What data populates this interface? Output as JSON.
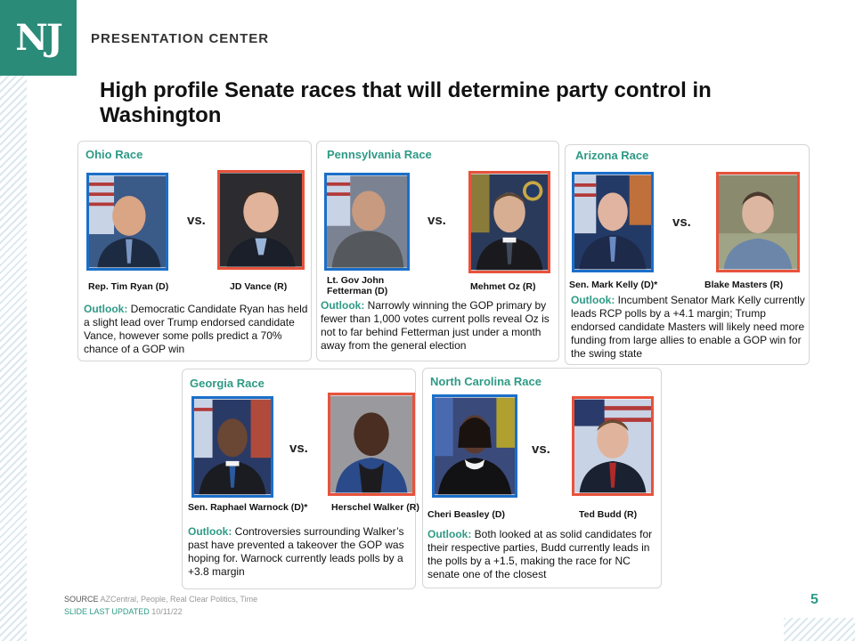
{
  "brand": {
    "logo_text": "NJ",
    "center": "PRESENTATION CENTER"
  },
  "title": "High profile Senate races that will determine party control in Washington",
  "vs_label": "vs.",
  "outlook_label": "Outlook:",
  "races": [
    {
      "name": "Ohio Race",
      "dem": "Rep. Tim Ryan (D)",
      "rep": "JD Vance (R)",
      "outlook": " Democratic Candidate Ryan has held a slight lead over Trump endorsed candidate Vance, however some polls predict a 70% chance of a GOP win"
    },
    {
      "name": "Pennsylvania Race",
      "dem": "Lt. Gov John Fetterman (D)",
      "rep": "Mehmet Oz (R)",
      "outlook": " Narrowly winning the GOP primary by fewer than 1,000 votes current polls reveal Oz is not to far behind Fetterman just under a month away from the general election"
    },
    {
      "name": "Arizona Race",
      "dem": "Sen. Mark Kelly (D)*",
      "rep": "Blake Masters (R)",
      "outlook": " Incumbent Senator Mark Kelly currently leads RCP polls by a +4.1 margin; Trump endorsed candidate Masters will likely need more funding from large allies to enable a GOP win for the swing state"
    },
    {
      "name": "Georgia Race",
      "dem": "Sen. Raphael Warnock (D)*",
      "rep": "Herschel Walker (R)",
      "outlook": " Controversies surrounding Walker’s past have prevented a takeover the GOP was hoping for. Warnock currently leads polls by a +3.8 margin"
    },
    {
      "name": "North Carolina Race",
      "dem": "Cheri Beasley (D)",
      "rep": "Ted Budd (R)",
      "outlook": " Both looked at as solid candidates for their respective parties, Budd currently leads in the polls by a +1.5, making the race for NC senate one of the closest"
    }
  ],
  "footer": {
    "source_label": "SOURCE",
    "source_text": " AZCentral, People, Real Clear Politics, Time",
    "updated_label": "SLIDE LAST UPDATED",
    "updated_date": " 10/11/22",
    "page": "5"
  },
  "colors": {
    "accent": "#2e9a86",
    "dem_border": "#1b6fc9",
    "rep_border": "#e8523b"
  }
}
